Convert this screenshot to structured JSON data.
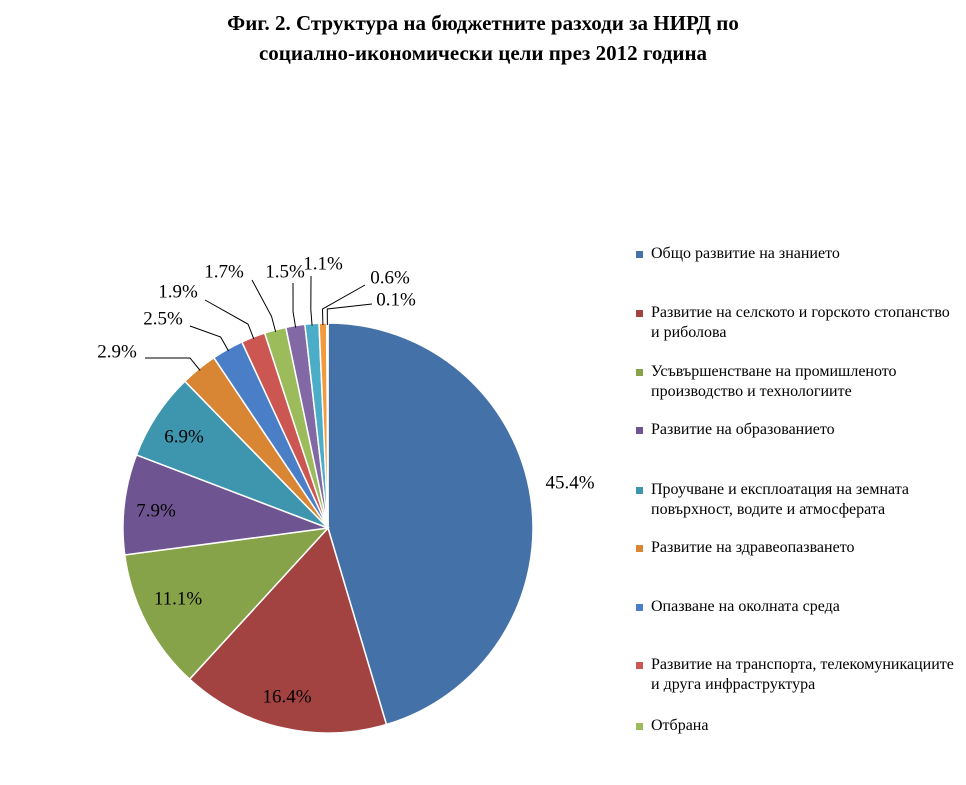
{
  "chart_data": {
    "type": "pie",
    "title": "Фиг. 2. Структура на бюджетните разходи за НИРД по социално-икономически цели през 2012 година",
    "title_lines": [
      "Фиг. 2. Структура на бюджетните разходи за НИРД по",
      "социално-икономически цели през 2012 година"
    ],
    "legend_position": "right",
    "slices": [
      {
        "label": "Общо развитие на знанието",
        "value": 45.4,
        "display": "45.4%",
        "color": "#4471A7"
      },
      {
        "label": "Развитие на селското и горското стопанство и риболова",
        "value": 16.4,
        "display": "16.4%",
        "color": "#A34341"
      },
      {
        "label": "Усъвършенстване на промишленото производство и технологиите",
        "value": 11.1,
        "display": "11.1%",
        "color": "#87A34A"
      },
      {
        "label": "Развитие на образованието",
        "value": 7.9,
        "display": "7.9%",
        "color": "#6E5490"
      },
      {
        "label": "Проучване и експлоатация на земната повърхност, водите и атмосферата",
        "value": 6.9,
        "display": "6.9%",
        "color": "#3D96AE"
      },
      {
        "label": "Развитие на здравеопазването",
        "value": 2.9,
        "display": "2.9%",
        "color": "#D88534"
      },
      {
        "label": "Опазване на околната среда",
        "value": 2.5,
        "display": "2.5%",
        "color": "#4A7FC8"
      },
      {
        "label": "Развитие на транспорта, телекомуникациите и друга инфраструктура",
        "value": 1.9,
        "display": "1.9%",
        "color": "#CC5752"
      },
      {
        "label": "Отбрана",
        "value": 1.7,
        "display": "1.7%",
        "color": "#9CBC5B"
      },
      {
        "label": "",
        "value": 1.5,
        "display": "1.5%",
        "color": "#8268A5"
      },
      {
        "label": "",
        "value": 1.1,
        "display": "1.1%",
        "color": "#4BADC7"
      },
      {
        "label": "",
        "value": 0.6,
        "display": "0.6%",
        "color": "#F19A3E"
      },
      {
        "label": "",
        "value": 0.1,
        "display": "0.1%",
        "color": "#6C95D4"
      }
    ]
  }
}
